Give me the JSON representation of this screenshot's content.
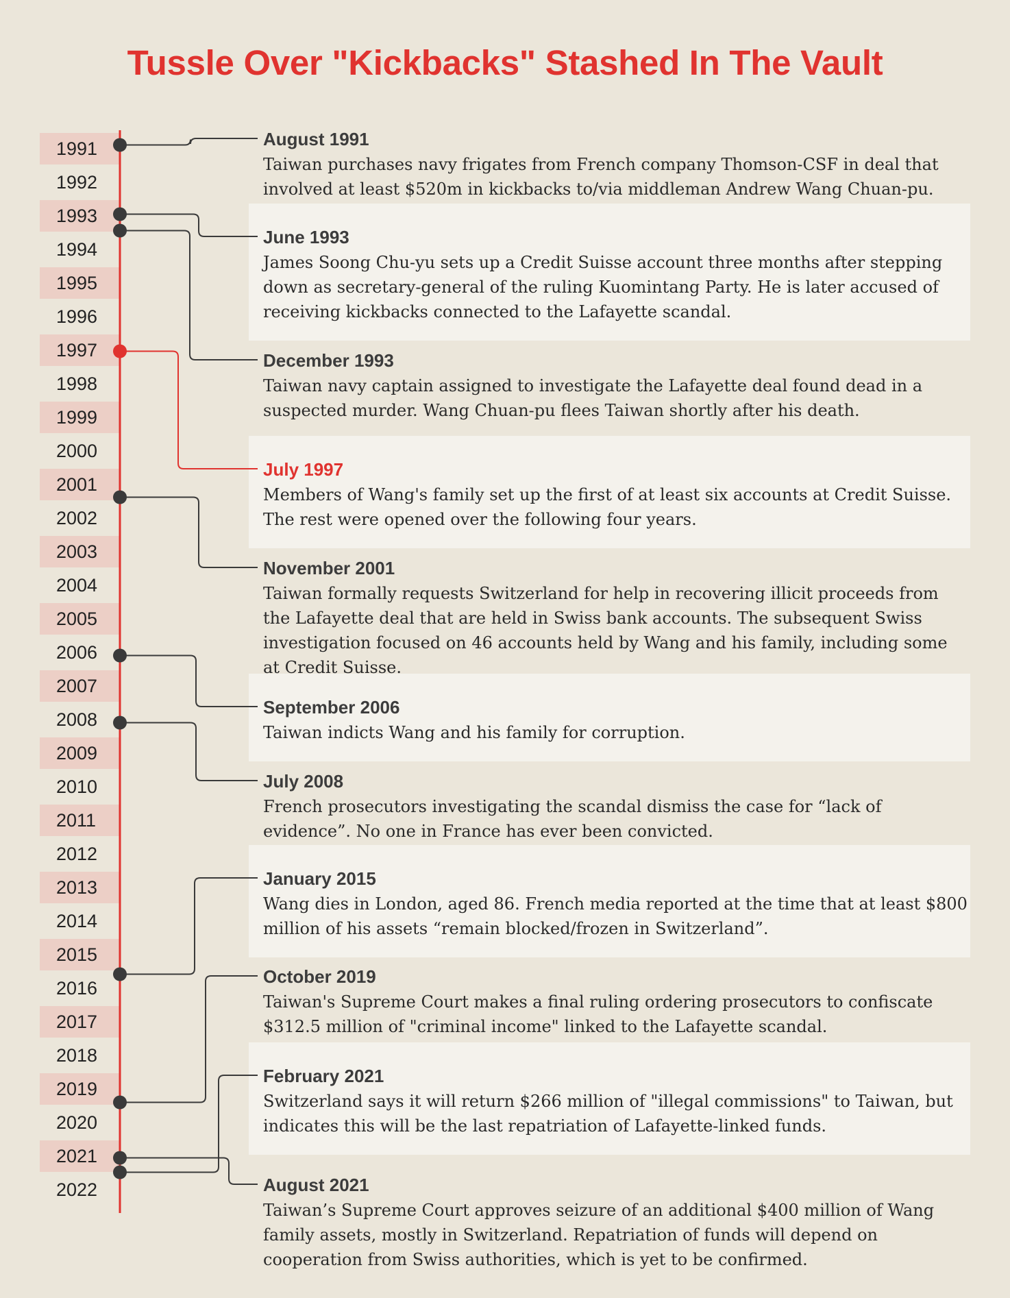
{
  "title": "Tussle Over \"Kickbacks\" Stashed In The Vault",
  "colors": {
    "background": "#ebe6da",
    "accent": "#e0332f",
    "year_band": "#eccfc6",
    "panel": "#f4f2ec",
    "connector": "#3a3a3a"
  },
  "years": [
    {
      "label": "1991",
      "shaded": true
    },
    {
      "label": "1992",
      "shaded": false
    },
    {
      "label": "1993",
      "shaded": true
    },
    {
      "label": "1994",
      "shaded": false
    },
    {
      "label": "1995",
      "shaded": true
    },
    {
      "label": "1996",
      "shaded": false
    },
    {
      "label": "1997",
      "shaded": true
    },
    {
      "label": "1998",
      "shaded": false
    },
    {
      "label": "1999",
      "shaded": true
    },
    {
      "label": "2000",
      "shaded": false
    },
    {
      "label": "2001",
      "shaded": true
    },
    {
      "label": "2002",
      "shaded": false
    },
    {
      "label": "2003",
      "shaded": true
    },
    {
      "label": "2004",
      "shaded": false
    },
    {
      "label": "2005",
      "shaded": true
    },
    {
      "label": "2006",
      "shaded": false
    },
    {
      "label": "2007",
      "shaded": true
    },
    {
      "label": "2008",
      "shaded": false
    },
    {
      "label": "2009",
      "shaded": true
    },
    {
      "label": "2010",
      "shaded": false
    },
    {
      "label": "2011",
      "shaded": true
    },
    {
      "label": "2012",
      "shaded": false
    },
    {
      "label": "2013",
      "shaded": true
    },
    {
      "label": "2014",
      "shaded": false
    },
    {
      "label": "2015",
      "shaded": true
    },
    {
      "label": "2016",
      "shaded": false
    },
    {
      "label": "2017",
      "shaded": true
    },
    {
      "label": "2018",
      "shaded": false
    },
    {
      "label": "2019",
      "shaded": true
    },
    {
      "label": "2020",
      "shaded": false
    },
    {
      "label": "2021",
      "shaded": true
    },
    {
      "label": "2022",
      "shaded": false
    }
  ],
  "events": [
    {
      "date": "August 1991",
      "year": 1991,
      "month": 8,
      "highlight": false,
      "panel": false,
      "description": "Taiwan purchases navy frigates from French company Thomson-CSF in deal that involved at least $520m in kickbacks to/via middleman Andrew Wang Chuan-pu."
    },
    {
      "date": "June 1993",
      "year": 1993,
      "month": 6,
      "highlight": false,
      "panel": true,
      "description": "James Soong Chu-yu sets up a Credit Suisse account three months after stepping down as secretary-general of the ruling Kuomintang Party. He is later accused of receiving kickbacks connected to the Lafayette scandal."
    },
    {
      "date": "December 1993",
      "year": 1993,
      "month": 12,
      "highlight": false,
      "panel": false,
      "description": "Taiwan navy captain assigned to investigate the Lafayette deal found dead in a suspected murder. Wang Chuan-pu flees Taiwan shortly after his death."
    },
    {
      "date": "July 1997",
      "year": 1997,
      "month": 7,
      "highlight": true,
      "panel": true,
      "description": "Members of Wang's family set up the first of at least six accounts at Credit Suisse. The rest were opened over the following four years."
    },
    {
      "date": "November 2001",
      "year": 2001,
      "month": 11,
      "highlight": false,
      "panel": false,
      "description": "Taiwan formally requests Switzerland for help in recovering illicit proceeds from the Lafayette deal that are held in Swiss bank accounts. The subsequent Swiss investigation focused on 46 accounts held by Wang and his family, including some at Credit Suisse."
    },
    {
      "date": "September 2006",
      "year": 2006,
      "month": 9,
      "highlight": false,
      "panel": true,
      "description": "Taiwan indicts Wang and his family for corruption."
    },
    {
      "date": "July 2008",
      "year": 2008,
      "month": 7,
      "highlight": false,
      "panel": false,
      "description": "French prosecutors investigating the scandal dismiss the case for “lack of evidence”. No one in France has ever been convicted."
    },
    {
      "date": "January 2015",
      "year": 2015,
      "month": 1,
      "highlight": false,
      "panel": true,
      "description": "Wang dies in London, aged 86. French media reported at the time that at least $800 million of his assets “remain blocked/frozen in Switzerland”."
    },
    {
      "date": "October 2019",
      "year": 2019,
      "month": 10,
      "highlight": false,
      "panel": false,
      "description": "Taiwan's Supreme Court makes a final ruling ordering prosecutors to confiscate $312.5 million of \"criminal income\" linked to the Lafayette scandal."
    },
    {
      "date": "February 2021",
      "year": 2021,
      "month": 2,
      "highlight": false,
      "panel": true,
      "description": "Switzerland says it will return $266 million of \"illegal commissions\" to Taiwan, but indicates this will be the last repatriation of Lafayette-linked funds."
    },
    {
      "date": "August 2021",
      "year": 2021,
      "month": 8,
      "highlight": false,
      "panel": false,
      "description": "Taiwan’s Supreme Court approves seizure of an additional $400 million of Wang family assets, mostly in Switzerland. Repatriation of funds will depend on cooperation from Swiss authorities, which is yet to be confirmed."
    }
  ]
}
